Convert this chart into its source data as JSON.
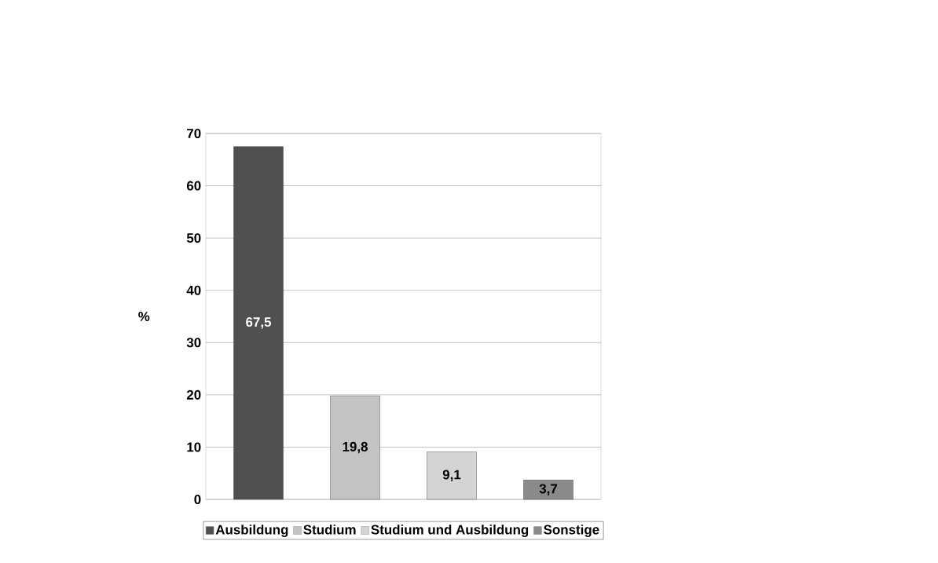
{
  "chart_data": {
    "type": "bar",
    "ylabel": "%",
    "categories": [
      null
    ],
    "series": [
      {
        "name": "Ausbildung",
        "color": "#505050",
        "values": [
          67.5
        ],
        "value_labels": [
          "67,5"
        ]
      },
      {
        "name": "Studium",
        "color": "#c4c4c4",
        "values": [
          19.8
        ],
        "value_labels": [
          "19,8"
        ]
      },
      {
        "name": "Studium und Ausbildung",
        "color": "#d4d4d4",
        "values": [
          9.1
        ],
        "value_labels": [
          "9,1"
        ]
      },
      {
        "name": "Sonstige",
        "color": "#8a8a8a",
        "values": [
          3.7
        ],
        "value_labels": [
          "3,7"
        ]
      }
    ],
    "ylim": [
      0,
      70
    ],
    "yticks": [
      0,
      10,
      20,
      30,
      40,
      50,
      60,
      70
    ],
    "grid": "y",
    "legend": "bottom"
  }
}
